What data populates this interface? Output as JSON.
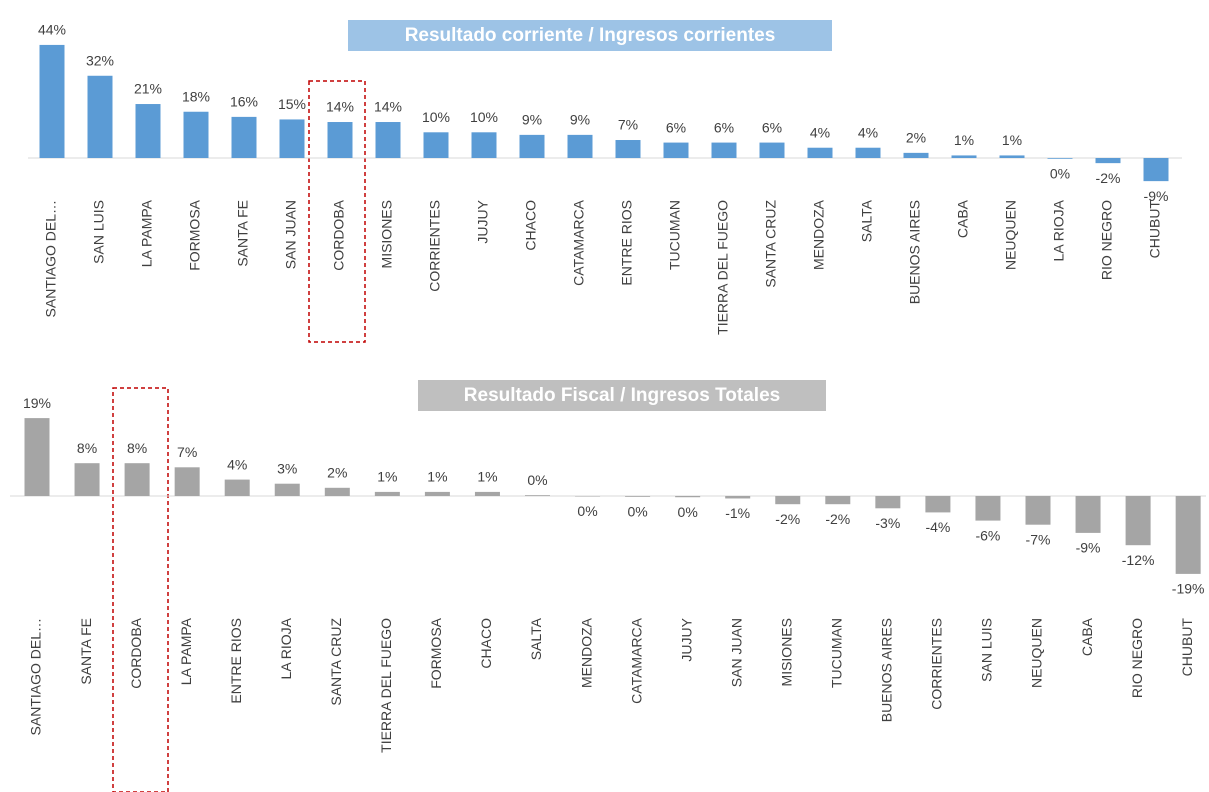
{
  "chart_data": [
    {
      "type": "bar",
      "title": "Resultado corriente / Ingresos corrientes",
      "color": "#5b9bd5",
      "categories": [
        "SANTIAGO DEL…",
        "SAN LUIS",
        "LA PAMPA",
        "FORMOSA",
        "SANTA FE",
        "SAN JUAN",
        "CORDOBA",
        "MISIONES",
        "CORRIENTES",
        "JUJUY",
        "CHACO",
        "CATAMARCA",
        "ENTRE RIOS",
        "TUCUMAN",
        "TIERRA DEL FUEGO",
        "SANTA CRUZ",
        "MENDOZA",
        "SALTA",
        "BUENOS AIRES",
        "CABA",
        "NEUQUEN",
        "LA RIOJA",
        "RIO NEGRO",
        "CHUBUT"
      ],
      "values": [
        44,
        32,
        21,
        18,
        16,
        15,
        14,
        14,
        10,
        10,
        9,
        9,
        7,
        6,
        6,
        6,
        4,
        4,
        2,
        1,
        1,
        -0.3,
        -2,
        -9
      ],
      "value_labels": [
        "44%",
        "32%",
        "21%",
        "18%",
        "16%",
        "15%",
        "14%",
        "14%",
        "10%",
        "10%",
        "9%",
        "9%",
        "7%",
        "6%",
        "6%",
        "6%",
        "4%",
        "4%",
        "2%",
        "1%",
        "1%",
        "0%",
        "-2%",
        "-9%"
      ]
    },
    {
      "type": "bar",
      "title": "Resultado Fiscal / Ingresos Totales",
      "color": "#a5a5a5",
      "categories": [
        "SANTIAGO DEL…",
        "SANTA FE",
        "CORDOBA",
        "LA PAMPA",
        "ENTRE RIOS",
        "LA RIOJA",
        "SANTA CRUZ",
        "TIERRA DEL FUEGO",
        "FORMOSA",
        "CHACO",
        "SALTA",
        "MENDOZA",
        "CATAMARCA",
        "JUJUY",
        "SAN JUAN",
        "MISIONES",
        "TUCUMAN",
        "BUENOS AIRES",
        "CORRIENTES",
        "SAN LUIS",
        "NEUQUEN",
        "CABA",
        "RIO NEGRO",
        "CHUBUT"
      ],
      "values": [
        19,
        8,
        8,
        7,
        4,
        3,
        2,
        1,
        1,
        1,
        0.2,
        -0.1,
        -0.2,
        -0.3,
        -0.6,
        -2,
        -2,
        -3,
        -4,
        -6,
        -7,
        -9,
        -12,
        -19
      ],
      "value_labels": [
        "19%",
        "8%",
        "8%",
        "7%",
        "4%",
        "3%",
        "2%",
        "1%",
        "1%",
        "1%",
        "0%",
        "0%",
        "0%",
        "0%",
        "-1%",
        "-2%",
        "-2%",
        "-3%",
        "-4%",
        "-6%",
        "-7%",
        "-9%",
        "-12%",
        "-19%"
      ]
    }
  ]
}
